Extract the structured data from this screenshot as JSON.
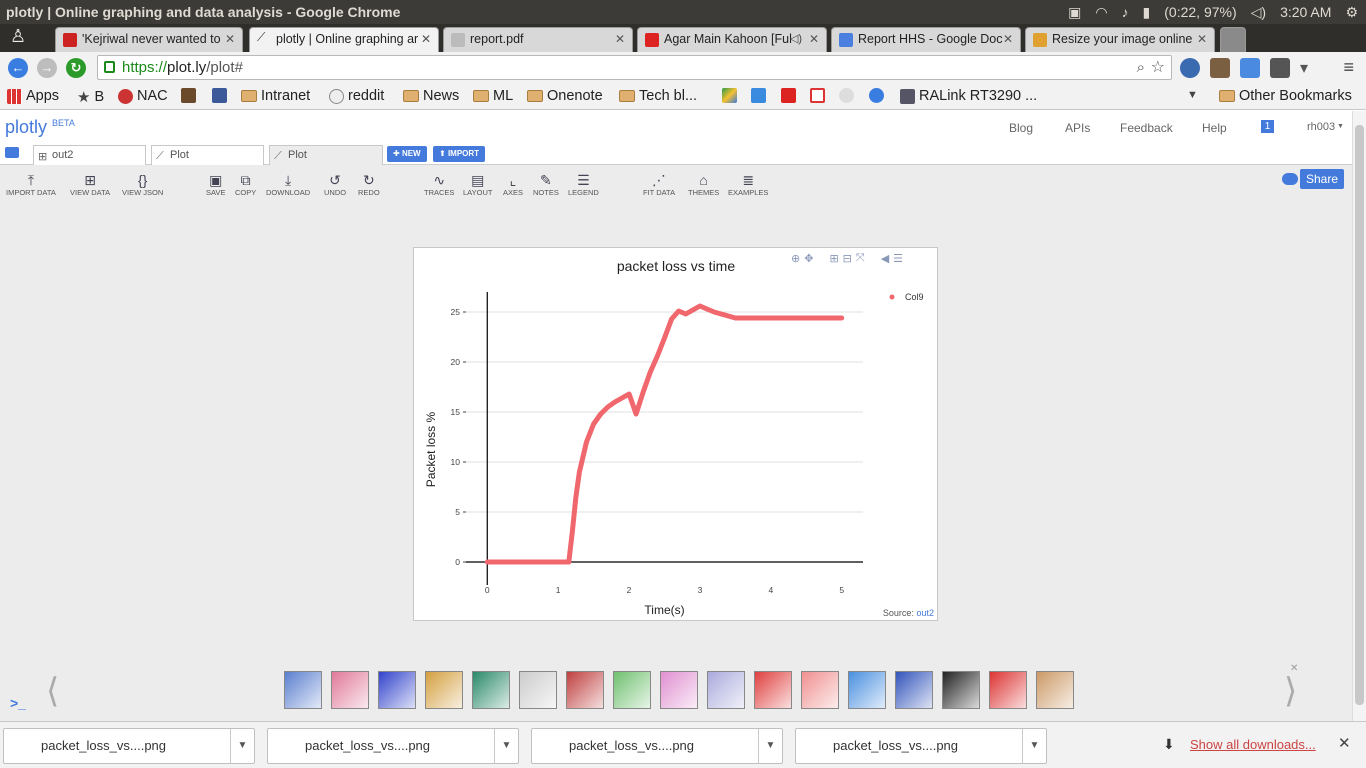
{
  "window": {
    "title": "plotly | Online graphing and data analysis - Google Chrome",
    "battery": "(0:22, 97%)",
    "clock": "3:20 AM"
  },
  "tabs": [
    {
      "label": "'Kejriwal never wanted to",
      "favicon_color": "#cc2222"
    },
    {
      "label": "plotly | Online graphing ar",
      "favicon_color": "#333333"
    },
    {
      "label": "report.pdf",
      "favicon_color": "#888888"
    },
    {
      "label": "Agar Main Kahoon [Ful",
      "favicon_color": "#dd2222"
    },
    {
      "label": "Report HHS - Google Doc",
      "favicon_color": "#4a7fe0"
    },
    {
      "label": "Resize your image online",
      "favicon_color": "#e0a030"
    }
  ],
  "address": {
    "scheme": "https://",
    "host": "plot.ly",
    "path": "/plot#"
  },
  "bookmarks": [
    {
      "label": "Apps",
      "icon": "apps-grid-icon"
    },
    {
      "label": "B",
      "icon": "star-icon"
    },
    {
      "label": "NAC",
      "icon": "nac-icon"
    },
    {
      "label": "",
      "icon": "bookmark-icon"
    },
    {
      "label": "",
      "icon": "facebook-icon"
    },
    {
      "label": "Intranet",
      "icon": "folder-icon"
    },
    {
      "label": "reddit",
      "icon": "reddit-icon"
    },
    {
      "label": "News",
      "icon": "folder-icon"
    },
    {
      "label": "ML",
      "icon": "folder-icon"
    },
    {
      "label": "Onenote",
      "icon": "folder-icon"
    },
    {
      "label": "Tech bl...",
      "icon": "folder-icon"
    },
    {
      "label": "RALink RT3290 ...",
      "icon": "ds-icon"
    },
    {
      "label": "Other Bookmarks",
      "icon": "folder-icon"
    }
  ],
  "plotly": {
    "logo": "plotly",
    "logo_badge": "BETA",
    "nav": {
      "blog": "Blog",
      "apis": "APIs",
      "feedback": "Feedback",
      "help": "Help",
      "notif": "1",
      "user": "rh003"
    },
    "file_tabs": [
      {
        "label": "out2",
        "icon": "grid-icon"
      },
      {
        "label": "Plot",
        "icon": "chart-icon"
      },
      {
        "label": "Plot",
        "icon": "chart-icon"
      }
    ],
    "new_btn": "NEW",
    "import_btn": "IMPORT",
    "ribbon": {
      "import_data": "IMPORT DATA",
      "view_data": "VIEW DATA",
      "view_json": "VIEW JSON",
      "save": "SAVE",
      "copy": "COPY",
      "download": "DOWNLOAD",
      "undo": "UNDO",
      "redo": "REDO",
      "traces": "TRACES",
      "layout": "LAYOUT",
      "axes": "AXES",
      "notes": "NOTES",
      "legend": "LEGEND",
      "fit_data": "FIT DATA",
      "themes": "THEMES",
      "examples": "EXAMPLES"
    },
    "share": "Share",
    "source_label": "Source:",
    "source_link": "out2"
  },
  "chart_data": {
    "type": "line",
    "title": "packet loss vs time",
    "xlabel": "Time(s)",
    "ylabel": "Packet loss %",
    "xlim": [
      -0.3,
      5.3
    ],
    "ylim": [
      -1.5,
      27
    ],
    "xticks": [
      0,
      1,
      2,
      3,
      4,
      5
    ],
    "yticks": [
      0,
      5,
      10,
      15,
      20,
      25
    ],
    "grid": true,
    "legend_position": "top-right",
    "series": [
      {
        "name": "Col9",
        "color": "#f0676d",
        "x": [
          0,
          0.5,
          1.0,
          1.15,
          1.2,
          1.25,
          1.3,
          1.4,
          1.5,
          1.6,
          1.7,
          1.8,
          1.9,
          2.0,
          2.05,
          2.1,
          2.2,
          2.3,
          2.4,
          2.5,
          2.6,
          2.7,
          2.8,
          3.0,
          3.2,
          3.5,
          4.0,
          4.5,
          5.0
        ],
        "y": [
          0,
          0,
          0,
          0,
          3,
          6.5,
          9,
          12,
          13.8,
          14.8,
          15.5,
          16.0,
          16.4,
          16.8,
          15.8,
          14.8,
          17.0,
          19.0,
          20.6,
          22.4,
          24.3,
          25.1,
          24.8,
          25.6,
          25.0,
          24.4,
          24.4,
          24.4,
          24.4
        ]
      }
    ]
  },
  "thumbnails": [
    "#5b7fcf",
    "#e07a9a",
    "#3344cc",
    "#d4a040",
    "#2a8a6a",
    "#cccccc",
    "#c04040",
    "#70c070",
    "#e090d0",
    "#aaaadd",
    "#e04040",
    "#f09090",
    "#4a90e0",
    "#3355bb",
    "#222222",
    "#dd3333",
    "#cc9966"
  ],
  "downloads": {
    "items": [
      "packet_loss_vs....png",
      "packet_loss_vs....png",
      "packet_loss_vs....png",
      "packet_loss_vs....png"
    ],
    "show_all": "Show all downloads..."
  }
}
